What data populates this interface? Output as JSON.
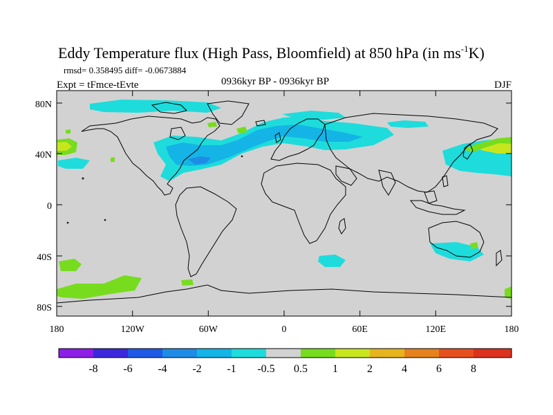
{
  "title": {
    "main": "Eddy Temperature flux (High Pass, Bloomfield) at 850 hPa (in ms",
    "sup": "-1",
    "end": "K)"
  },
  "stats": "rmsd= 0.358495 diff= -0.0673884",
  "experiment": "Expt = tFmce-tEvte",
  "period": "0936kyr BP - 0936kyr BP",
  "season": "DJF",
  "y_ticks": [
    "80N",
    "40N",
    "0",
    "40S",
    "80S"
  ],
  "x_ticks": [
    "180",
    "120W",
    "60W",
    "0",
    "60E",
    "120E",
    "180"
  ],
  "colorbar": {
    "labels": [
      "-8",
      "-6",
      "-4",
      "-2",
      "-1",
      "-0.5",
      "0.5",
      "1",
      "2",
      "4",
      "6",
      "8"
    ],
    "colors": [
      "#8c1ee6",
      "#3c28dc",
      "#1e5ae6",
      "#1e8ce6",
      "#14b4e6",
      "#1edcdc",
      "#d2d2d2",
      "#78dc1e",
      "#c8e61e",
      "#e6b41e",
      "#e6821e",
      "#e6501e",
      "#dc321e"
    ]
  },
  "colors": {
    "background": "#d2d2d2",
    "cyan": "#1edcdc",
    "sky": "#14b4e6",
    "blue": "#1e8ce6",
    "green": "#78dc1e",
    "yellow": "#c8e61e",
    "coast": "#000000"
  }
}
